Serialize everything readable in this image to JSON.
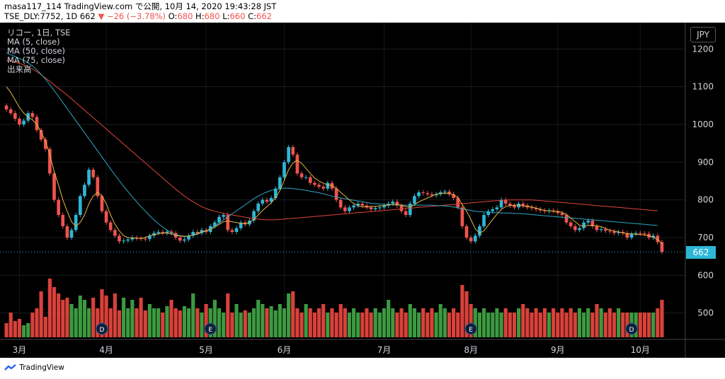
{
  "header": {
    "line1": "masa117_114 TradingView.com で公開, 10月 14, 2020 19:43:28 JST",
    "symbol": "TSE_DLY:7752, 1D",
    "last": "662",
    "change": "▼ −26 (−3.78%)",
    "o_label": "O:",
    "o": "680",
    "h_label": "H:",
    "h": "680",
    "l_label": "L:",
    "l": "660",
    "c_label": "C:",
    "c": "662"
  },
  "legend": {
    "title": "リコー, 1日, TSE",
    "ma5": "MA (5, close)",
    "ma50": "MA (50, close)",
    "ma75": "MA (75, close)",
    "volume": "出来高"
  },
  "currency": "JPY",
  "price_tag": "662",
  "footer": {
    "brand": "TradingView"
  },
  "chart_data": {
    "type": "candlestick",
    "y_ticks": [
      500,
      600,
      700,
      800,
      900,
      1000,
      1100,
      1200
    ],
    "ylim": [
      430,
      1270
    ],
    "x_labels": [
      "3月",
      "4月",
      "5月",
      "6月",
      "7月",
      "8月",
      "9月",
      "10月"
    ],
    "x_label_index": [
      3,
      23,
      46,
      64,
      87,
      107,
      127,
      146
    ],
    "event_markers": [
      {
        "index": 22,
        "label": "D"
      },
      {
        "index": 47,
        "label": "E"
      },
      {
        "index": 107,
        "label": "E"
      },
      {
        "index": 144,
        "label": "D"
      }
    ],
    "last_close": 662,
    "ma_colors": {
      "ma5": "#e5b742",
      "ma50": "#2ba8c4",
      "ma75": "#e0453a"
    },
    "up_color": "#2eb6d6",
    "down_color": "#ef5350",
    "vol_up_color": "#3c9a40",
    "vol_down_color": "#d9413a",
    "closes": [
      1040,
      1030,
      1015,
      1000,
      1010,
      1030,
      1020,
      985,
      960,
      935,
      870,
      800,
      760,
      730,
      700,
      720,
      760,
      810,
      840,
      880,
      860,
      810,
      770,
      740,
      720,
      705,
      690,
      692,
      695,
      700,
      698,
      697,
      696,
      705,
      712,
      715,
      712,
      716,
      712,
      700,
      692,
      695,
      705,
      715,
      712,
      720,
      715,
      730,
      740,
      755,
      760,
      720,
      715,
      725,
      740,
      735,
      745,
      770,
      790,
      800,
      795,
      805,
      830,
      860,
      900,
      940,
      920,
      870,
      860,
      860,
      845,
      840,
      835,
      830,
      845,
      830,
      800,
      780,
      770,
      780,
      785,
      790,
      785,
      780,
      775,
      778,
      780,
      785,
      790,
      795,
      785,
      770,
      760,
      790,
      810,
      820,
      818,
      815,
      812,
      815,
      820,
      822,
      815,
      805,
      780,
      730,
      700,
      690,
      705,
      730,
      760,
      770,
      775,
      780,
      800,
      790,
      785,
      780,
      790,
      785,
      780,
      778,
      775,
      772,
      770,
      772,
      770,
      765,
      760,
      740,
      730,
      720,
      725,
      740,
      745,
      730,
      720,
      722,
      718,
      716,
      712,
      715,
      712,
      700,
      710,
      712,
      711,
      710,
      700,
      705,
      688,
      662
    ],
    "ma5": [
      1100,
      1085,
      1065,
      1045,
      1030,
      1020,
      1012,
      1000,
      980,
      955,
      920,
      875,
      840,
      800,
      770,
      742,
      730,
      740,
      760,
      790,
      810,
      820,
      810,
      790,
      760,
      735,
      718,
      705,
      700,
      699,
      698,
      698,
      700,
      705,
      708,
      710,
      712,
      712,
      710,
      706,
      704,
      703,
      704,
      707,
      711,
      715,
      718,
      722,
      728,
      735,
      742,
      744,
      742,
      740,
      738,
      737,
      740,
      748,
      760,
      772,
      782,
      792,
      806,
      825,
      852,
      880,
      898,
      905,
      897,
      884,
      870,
      858,
      850,
      844,
      840,
      838,
      830,
      820,
      810,
      800,
      790,
      784,
      782,
      781,
      782,
      783,
      784,
      785,
      786,
      788,
      788,
      786,
      782,
      781,
      787,
      795,
      800,
      805,
      810,
      815,
      817,
      818,
      817,
      814,
      806,
      788,
      770,
      748,
      723,
      712,
      718,
      733,
      748,
      762,
      775,
      782,
      785,
      786,
      786,
      784,
      783,
      781,
      778,
      775,
      772,
      771,
      770,
      769,
      767,
      761,
      752,
      742,
      733,
      730,
      732,
      732,
      731,
      729,
      724,
      720,
      717,
      715,
      713,
      710,
      710,
      709,
      708,
      707,
      705,
      701,
      695,
      684
    ],
    "ma50": [
      1190,
      1185,
      1180,
      1175,
      1170,
      1163,
      1155,
      1145,
      1133,
      1120,
      1105,
      1090,
      1074,
      1058,
      1042,
      1026,
      1010,
      994,
      978,
      962,
      946,
      930,
      914,
      898,
      882,
      866,
      851,
      836,
      822,
      808,
      795,
      782,
      770,
      758,
      747,
      737,
      728,
      720,
      713,
      708,
      705,
      704,
      704,
      706,
      709,
      713,
      718,
      724,
      731,
      739,
      747,
      755,
      763,
      771,
      779,
      787,
      795,
      803,
      810,
      816,
      821,
      825,
      828,
      830,
      831,
      831,
      830,
      829,
      827,
      825,
      823,
      821,
      819,
      816,
      813,
      810,
      807,
      805,
      803,
      801,
      799,
      797,
      795,
      793,
      791,
      790,
      789,
      788,
      788,
      787,
      787,
      786,
      786,
      786,
      786,
      786,
      786,
      786,
      786,
      785,
      785,
      784,
      783,
      781,
      779,
      776,
      774,
      772,
      770,
      769,
      768,
      767,
      766,
      766,
      765,
      765,
      765,
      764,
      764,
      763,
      762,
      761,
      760,
      759,
      758,
      757,
      756,
      755,
      754,
      753,
      752,
      751,
      750,
      749,
      748,
      747,
      746,
      745,
      744,
      743,
      742,
      741,
      740,
      739,
      738,
      737,
      736,
      735,
      734,
      733,
      732
    ],
    "ma75": [
      1170,
      1168,
      1165,
      1162,
      1158,
      1153,
      1147,
      1140,
      1132,
      1123,
      1114,
      1105,
      1096,
      1087,
      1078,
      1068,
      1058,
      1048,
      1038,
      1028,
      1018,
      1008,
      998,
      988,
      978,
      968,
      958,
      948,
      938,
      928,
      918,
      908,
      898,
      888,
      878,
      868,
      858,
      848,
      838,
      828,
      819,
      810,
      802,
      795,
      788,
      782,
      777,
      773,
      770,
      767,
      764,
      762,
      760,
      758,
      756,
      754,
      752,
      750,
      749,
      748,
      747,
      747,
      747,
      748,
      749,
      750,
      751,
      752,
      753,
      754,
      755,
      756,
      757,
      758,
      759,
      760,
      761,
      762,
      763,
      764,
      765,
      766,
      767,
      768,
      769,
      770,
      771,
      772,
      773,
      774,
      775,
      776,
      777,
      778,
      779,
      780,
      781,
      782,
      783,
      784,
      785,
      786,
      787,
      788,
      789,
      790,
      791,
      792,
      793,
      794,
      795,
      796,
      797,
      798,
      799,
      800,
      800,
      800,
      800,
      800,
      800,
      800,
      799,
      798,
      797,
      796,
      795,
      794,
      793,
      792,
      791,
      790,
      789,
      788,
      787,
      786,
      785,
      784,
      783,
      782,
      781,
      780,
      779,
      778,
      777,
      776,
      775,
      774,
      773,
      772,
      771
    ],
    "volume": [
      650,
      700,
      660,
      670,
      640,
      650,
      700,
      720,
      800,
      680,
      860,
      820,
      790,
      760,
      770,
      740,
      720,
      780,
      760,
      720,
      770,
      720,
      810,
      780,
      720,
      790,
      710,
      770,
      720,
      760,
      720,
      770,
      710,
      740,
      720,
      720,
      700,
      730,
      760,
      720,
      710,
      730,
      720,
      790,
      720,
      700,
      740,
      720,
      760,
      720,
      700,
      790,
      700,
      740,
      700,
      710,
      700,
      720,
      760,
      740,
      720,
      730,
      710,
      740,
      720,
      790,
      800,
      720,
      700,
      740,
      720,
      700,
      720,
      740,
      700,
      720,
      700,
      740,
      720,
      700,
      720,
      700,
      700,
      720,
      700,
      720,
      700,
      720,
      760,
      720,
      700,
      720,
      700,
      740,
      720,
      700,
      720,
      700,
      720,
      700,
      740,
      720,
      700,
      720,
      700,
      830,
      800,
      740,
      720,
      700,
      720,
      700,
      700,
      720,
      700,
      720,
      700,
      700,
      720,
      740,
      720,
      700,
      720,
      700,
      720,
      700,
      720,
      700,
      720,
      700,
      720,
      700,
      720,
      700,
      720,
      700,
      740,
      720,
      700,
      720,
      700,
      720,
      700,
      700,
      700,
      700,
      700,
      700,
      700,
      700,
      720,
      760
    ]
  }
}
